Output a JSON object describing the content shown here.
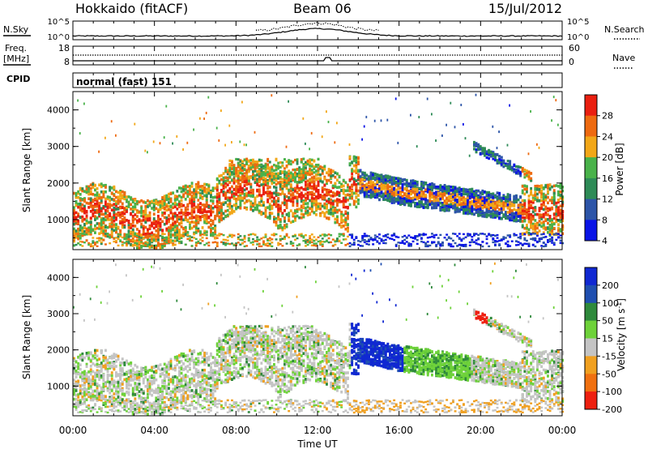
{
  "chart_data": {
    "type": "heatmap",
    "title": "Hokkaido (fitACF)",
    "beam": "Beam 06",
    "date": "15/Jul/2012",
    "xlabel": "Time UT",
    "x_ticks": [
      "00:00",
      "04:00",
      "08:00",
      "12:00",
      "16:00",
      "20:00",
      "00:00"
    ],
    "x_range_hours": [
      0,
      24
    ],
    "nsky_panel": {
      "left_label": "N.Sky",
      "right_label": "N.Search",
      "left_ticks": [
        "10^5",
        "10^0"
      ],
      "right_ticks": [
        "10^5",
        "10^0"
      ]
    },
    "freq_panel": {
      "left_label_line1": "Freq.",
      "left_label_line2": "[MHz]",
      "right_label": "Nave",
      "left_ticks": [
        18,
        8
      ],
      "right_ticks": [
        60,
        0
      ]
    },
    "cpid_panel": {
      "label": "CPID",
      "text": "normal (fast) 151"
    },
    "power_panel": {
      "ylabel": "Slant Range [km]",
      "y_ticks": [
        1000,
        2000,
        3000,
        4000
      ],
      "ylim": [
        180,
        4500
      ],
      "colorbar_label": "Power [dB]",
      "colorbar_ticks": [
        4,
        8,
        12,
        16,
        20,
        24,
        28
      ],
      "colorbar_colors": [
        "#0a14e6",
        "#2d55a8",
        "#2e8b57",
        "#49b24a",
        "#f2a718",
        "#ee6a10",
        "#ea1f10"
      ]
    },
    "velocity_panel": {
      "ylabel": "Slant Range [km]",
      "y_ticks": [
        1000,
        2000,
        3000,
        4000
      ],
      "ylim": [
        180,
        4500
      ],
      "colorbar_label": "Velocity [m s^-1]",
      "colorbar_ticks": [
        200,
        100,
        50,
        15,
        -15,
        -50,
        -100,
        -200
      ],
      "colorbar_colors": [
        "#1028d2",
        "#1f4fb0",
        "#2f8a3c",
        "#6ed23a",
        "#c4c4c4",
        "#f0a020",
        "#f07010",
        "#ee2010"
      ]
    }
  }
}
